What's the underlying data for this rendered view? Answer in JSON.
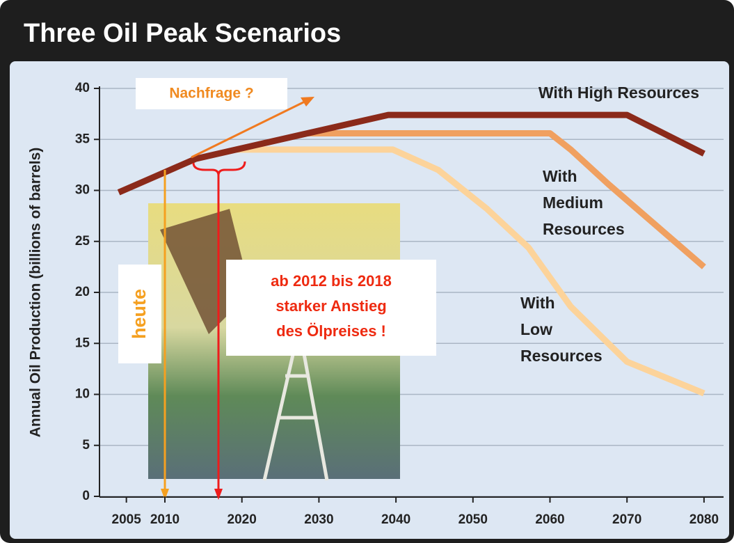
{
  "chart_data": {
    "type": "line",
    "title": "Three Oil Peak Scenarios",
    "y_label": "Annual Oil Production (billions of barrels)",
    "xlim": [
      2003,
      2083
    ],
    "xticks": [
      2005,
      2010,
      2020,
      2030,
      2040,
      2050,
      2060,
      2070,
      2080
    ],
    "ylim": [
      0,
      40
    ],
    "yticks": [
      0,
      5,
      10,
      15,
      20,
      25,
      30,
      35,
      40
    ],
    "series": [
      {
        "name": [
          "With High Resources"
        ],
        "color": "#8b2a1a",
        "x": [
          2004,
          2014,
          2039,
          2070,
          2080
        ],
        "values": [
          29.8,
          33.1,
          37.4,
          37.4,
          33.6
        ]
      },
      {
        "name": [
          "With",
          "Medium",
          "Resources"
        ],
        "color": "#f0a060",
        "x": [
          2028.5,
          2060,
          2062.7,
          2067.6,
          2080
        ],
        "values": [
          35.6,
          35.6,
          34,
          30.6,
          22.5
        ]
      },
      {
        "name": [
          "With",
          "Low",
          "Resources"
        ],
        "color": "#fcd39a",
        "x": [
          2019.2,
          2039.6,
          2045.5,
          2051.8,
          2057.2,
          2062.7,
          2070,
          2080
        ],
        "values": [
          34,
          34,
          32,
          28.2,
          24.4,
          18.6,
          13.2,
          10.1
        ]
      }
    ],
    "annotations": {
      "demand": "Nachfrage ?",
      "today": "heute",
      "price": [
        "ab 2012 bis 2018",
        "starker Anstieg",
        "des Ölpreises !"
      ]
    }
  }
}
